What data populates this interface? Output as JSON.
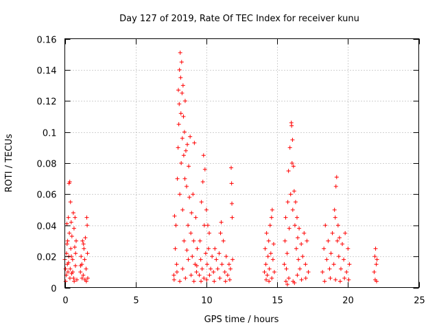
{
  "chart_data": {
    "type": "scatter",
    "title": "Day 127 of 2019, Rate Of TEC Index for receiver kunu",
    "xlabel": "GPS time / hours",
    "ylabel": "ROTI / TECUs",
    "xlim": [
      0,
      25
    ],
    "ylim": [
      0,
      0.16
    ],
    "x_ticks": [
      0,
      5,
      10,
      15,
      20,
      25
    ],
    "x_tick_labels": [
      "0",
      "5",
      "10",
      "15",
      "20",
      "25"
    ],
    "y_ticks": [
      0,
      0.02,
      0.04,
      0.06,
      0.08,
      0.1,
      0.12,
      0.14,
      0.16
    ],
    "y_tick_labels": [
      "0",
      "0.02",
      "0.04",
      "0.06",
      "0.08",
      "0.1",
      "0.12",
      "0.14",
      "0.16"
    ],
    "grid": true,
    "marker": "+",
    "marker_color": "#ff0000",
    "series": [
      {
        "points": [
          [
            0.0,
            0.018
          ],
          [
            0.05,
            0.012
          ],
          [
            0.1,
            0.008
          ],
          [
            0.12,
            0.022
          ],
          [
            0.15,
            0.041
          ],
          [
            0.18,
            0.015
          ],
          [
            0.2,
            0.03
          ],
          [
            0.22,
            0.01
          ],
          [
            0.25,
            0.045
          ],
          [
            0.28,
            0.02
          ],
          [
            0.3,
            0.067
          ],
          [
            0.32,
            0.035
          ],
          [
            0.35,
            0.068
          ],
          [
            0.38,
            0.012
          ],
          [
            0.4,
            0.055
          ],
          [
            0.42,
            0.025
          ],
          [
            0.45,
            0.042
          ],
          [
            0.48,
            0.009
          ],
          [
            0.5,
            0.033
          ],
          [
            0.55,
            0.018
          ],
          [
            0.6,
            0.048
          ],
          [
            0.62,
            0.006
          ],
          [
            0.65,
            0.038
          ],
          [
            0.7,
            0.026
          ],
          [
            0.72,
            0.045
          ],
          [
            0.75,
            0.014
          ],
          [
            0.8,
            0.03
          ],
          [
            0.85,
            0.005
          ],
          [
            0.06,
            0.004
          ],
          [
            0.16,
            0.028
          ],
          [
            0.26,
            0.016
          ],
          [
            0.36,
            0.006
          ],
          [
            0.46,
            0.02
          ],
          [
            0.56,
            0.01
          ],
          [
            0.66,
            0.004
          ],
          [
            0.76,
            0.022
          ],
          [
            1.1,
            0.01
          ],
          [
            1.15,
            0.02
          ],
          [
            1.2,
            0.015
          ],
          [
            1.25,
            0.03
          ],
          [
            1.3,
            0.008
          ],
          [
            1.35,
            0.025
          ],
          [
            1.4,
            0.018
          ],
          [
            1.45,
            0.032
          ],
          [
            1.5,
            0.012
          ],
          [
            1.55,
            0.045
          ],
          [
            1.58,
            0.04
          ],
          [
            1.6,
            0.022
          ],
          [
            1.62,
            0.006
          ],
          [
            1.52,
            0.004
          ],
          [
            1.42,
            0.005
          ],
          [
            1.32,
            0.028
          ],
          [
            1.22,
            0.006
          ],
          [
            1.12,
            0.014
          ],
          [
            7.7,
            0.008
          ],
          [
            7.75,
            0.046
          ],
          [
            7.8,
            0.025
          ],
          [
            7.85,
            0.04
          ],
          [
            7.9,
            0.015
          ],
          [
            7.95,
            0.07
          ],
          [
            8.0,
            0.09
          ],
          [
            8.02,
            0.127
          ],
          [
            8.05,
            0.105
          ],
          [
            8.08,
            0.118
          ],
          [
            8.1,
            0.14
          ],
          [
            8.12,
            0.06
          ],
          [
            8.15,
            0.151
          ],
          [
            8.18,
            0.135
          ],
          [
            8.2,
            0.112
          ],
          [
            8.22,
            0.08
          ],
          [
            8.25,
            0.145
          ],
          [
            8.28,
            0.125
          ],
          [
            8.3,
            0.096
          ],
          [
            8.32,
            0.05
          ],
          [
            8.35,
            0.13
          ],
          [
            8.38,
            0.11
          ],
          [
            8.4,
            0.085
          ],
          [
            8.42,
            0.03
          ],
          [
            8.45,
            0.1
          ],
          [
            8.48,
            0.07
          ],
          [
            8.5,
            0.12
          ],
          [
            8.55,
            0.088
          ],
          [
            8.6,
            0.065
          ],
          [
            8.65,
            0.092
          ],
          [
            8.7,
            0.04
          ],
          [
            8.75,
            0.078
          ],
          [
            8.8,
            0.058
          ],
          [
            8.85,
            0.097
          ],
          [
            8.9,
            0.035
          ],
          [
            8.95,
            0.048
          ],
          [
            9.0,
            0.02
          ],
          [
            9.05,
            0.06
          ],
          [
            9.1,
            0.03
          ],
          [
            9.15,
            0.093
          ],
          [
            9.2,
            0.015
          ],
          [
            9.25,
            0.045
          ],
          [
            9.3,
            0.01
          ],
          [
            9.35,
            0.025
          ],
          [
            7.72,
            0.005
          ],
          [
            7.92,
            0.01
          ],
          [
            8.12,
            0.004
          ],
          [
            8.32,
            0.012
          ],
          [
            8.52,
            0.006
          ],
          [
            8.72,
            0.018
          ],
          [
            8.92,
            0.008
          ],
          [
            9.12,
            0.004
          ],
          [
            9.32,
            0.014
          ],
          [
            8.62,
            0.024
          ],
          [
            9.5,
            0.008
          ],
          [
            9.55,
            0.03
          ],
          [
            9.6,
            0.018
          ],
          [
            9.65,
            0.055
          ],
          [
            9.7,
            0.012
          ],
          [
            9.75,
            0.068
          ],
          [
            9.8,
            0.085
          ],
          [
            9.85,
            0.04
          ],
          [
            9.9,
            0.076
          ],
          [
            9.95,
            0.022
          ],
          [
            10.0,
            0.05
          ],
          [
            10.05,
            0.015
          ],
          [
            10.1,
            0.04
          ],
          [
            10.15,
            0.025
          ],
          [
            10.2,
            0.035
          ],
          [
            10.3,
            0.012
          ],
          [
            10.4,
            0.02
          ],
          [
            9.62,
            0.004
          ],
          [
            9.82,
            0.006
          ],
          [
            10.02,
            0.005
          ],
          [
            10.22,
            0.008
          ],
          [
            10.5,
            0.01
          ],
          [
            10.6,
            0.025
          ],
          [
            10.7,
            0.018
          ],
          [
            10.8,
            0.012
          ],
          [
            10.9,
            0.022
          ],
          [
            11.0,
            0.035
          ],
          [
            11.05,
            0.042
          ],
          [
            11.1,
            0.015
          ],
          [
            11.2,
            0.03
          ],
          [
            11.3,
            0.01
          ],
          [
            11.4,
            0.02
          ],
          [
            11.5,
            0.008
          ],
          [
            11.6,
            0.015
          ],
          [
            11.7,
            0.012
          ],
          [
            11.75,
            0.077
          ],
          [
            11.78,
            0.067
          ],
          [
            11.8,
            0.054
          ],
          [
            11.82,
            0.045
          ],
          [
            11.85,
            0.018
          ],
          [
            10.55,
            0.004
          ],
          [
            10.95,
            0.006
          ],
          [
            11.35,
            0.004
          ],
          [
            11.65,
            0.005
          ],
          [
            14.1,
            0.01
          ],
          [
            14.15,
            0.025
          ],
          [
            14.2,
            0.015
          ],
          [
            14.25,
            0.035
          ],
          [
            14.3,
            0.008
          ],
          [
            14.35,
            0.02
          ],
          [
            14.4,
            0.03
          ],
          [
            14.45,
            0.012
          ],
          [
            14.5,
            0.04
          ],
          [
            14.55,
            0.022
          ],
          [
            14.6,
            0.045
          ],
          [
            14.65,
            0.05
          ],
          [
            14.7,
            0.018
          ],
          [
            14.75,
            0.028
          ],
          [
            14.8,
            0.01
          ],
          [
            14.22,
            0.005
          ],
          [
            14.42,
            0.004
          ],
          [
            14.62,
            0.006
          ],
          [
            15.5,
            0.015
          ],
          [
            15.55,
            0.03
          ],
          [
            15.6,
            0.045
          ],
          [
            15.65,
            0.012
          ],
          [
            15.7,
            0.022
          ],
          [
            15.75,
            0.055
          ],
          [
            15.8,
            0.075
          ],
          [
            15.85,
            0.038
          ],
          [
            15.9,
            0.09
          ],
          [
            15.95,
            0.06
          ],
          [
            16.0,
            0.106
          ],
          [
            16.02,
            0.104
          ],
          [
            16.05,
            0.08
          ],
          [
            16.08,
            0.095
          ],
          [
            16.1,
            0.05
          ],
          [
            16.15,
            0.078
          ],
          [
            16.2,
            0.062
          ],
          [
            16.25,
            0.04
          ],
          [
            16.3,
            0.055
          ],
          [
            16.35,
            0.025
          ],
          [
            16.4,
            0.045
          ],
          [
            16.45,
            0.032
          ],
          [
            16.5,
            0.018
          ],
          [
            16.55,
            0.038
          ],
          [
            16.6,
            0.012
          ],
          [
            16.7,
            0.028
          ],
          [
            16.8,
            0.02
          ],
          [
            16.9,
            0.035
          ],
          [
            17.0,
            0.015
          ],
          [
            17.1,
            0.03
          ],
          [
            17.2,
            0.01
          ],
          [
            15.62,
            0.004
          ],
          [
            15.82,
            0.006
          ],
          [
            16.12,
            0.004
          ],
          [
            16.42,
            0.008
          ],
          [
            16.72,
            0.005
          ],
          [
            17.02,
            0.006
          ],
          [
            15.72,
            0.002
          ],
          [
            16.22,
            0.003
          ],
          [
            18.2,
            0.01
          ],
          [
            18.3,
            0.025
          ],
          [
            18.4,
            0.04
          ],
          [
            18.5,
            0.018
          ],
          [
            18.6,
            0.03
          ],
          [
            18.7,
            0.012
          ],
          [
            18.8,
            0.022
          ],
          [
            18.9,
            0.035
          ],
          [
            19.0,
            0.015
          ],
          [
            19.05,
            0.05
          ],
          [
            19.1,
            0.045
          ],
          [
            19.15,
            0.065
          ],
          [
            19.2,
            0.071
          ],
          [
            19.25,
            0.03
          ],
          [
            19.3,
            0.04
          ],
          [
            19.35,
            0.02
          ],
          [
            19.4,
            0.032
          ],
          [
            19.5,
            0.012
          ],
          [
            19.6,
            0.028
          ],
          [
            19.7,
            0.018
          ],
          [
            19.8,
            0.035
          ],
          [
            19.9,
            0.01
          ],
          [
            20.0,
            0.025
          ],
          [
            20.1,
            0.015
          ],
          [
            18.35,
            0.004
          ],
          [
            18.75,
            0.006
          ],
          [
            19.12,
            0.005
          ],
          [
            19.45,
            0.004
          ],
          [
            19.75,
            0.006
          ],
          [
            20.05,
            0.005
          ],
          [
            21.85,
            0.01
          ],
          [
            21.9,
            0.02
          ],
          [
            21.95,
            0.025
          ],
          [
            22.0,
            0.015
          ],
          [
            22.05,
            0.018
          ],
          [
            21.92,
            0.005
          ],
          [
            22.02,
            0.004
          ]
        ]
      }
    ]
  }
}
